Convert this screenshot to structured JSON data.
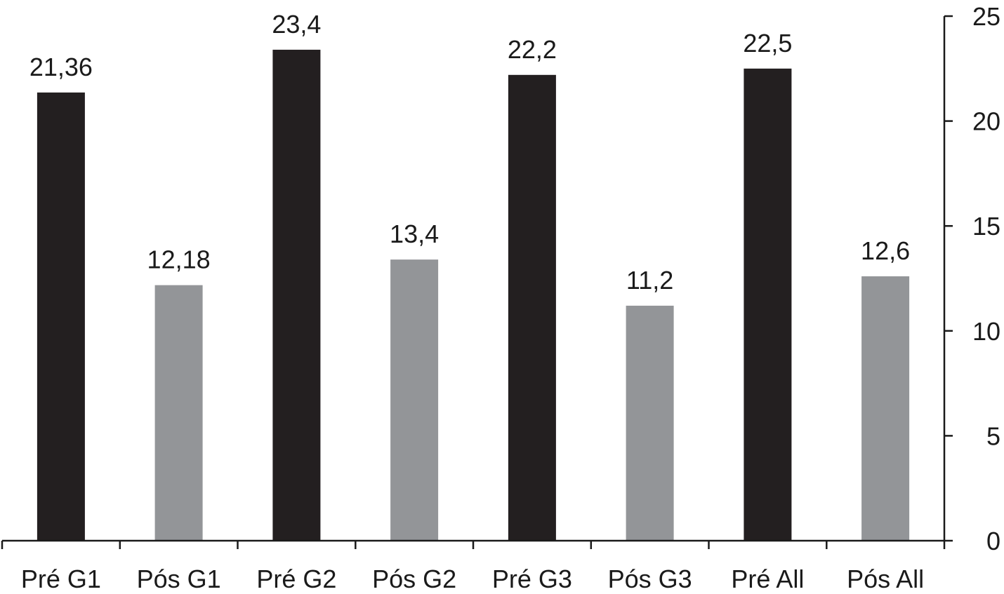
{
  "chart_data": {
    "type": "bar",
    "categories": [
      "Pré G1",
      "Pós G1",
      "Pré G2",
      "Pós G2",
      "Pré G3",
      "Pós G3",
      "Pré All",
      "Pós All"
    ],
    "values": [
      21.36,
      12.18,
      23.4,
      13.4,
      22.2,
      11.2,
      22.5,
      12.6
    ],
    "value_labels": [
      "21,36",
      "12,18",
      "23,4",
      "13,4",
      "22,2",
      "11,2",
      "22,5",
      "12,6"
    ],
    "ylim": [
      0,
      25
    ],
    "yticks": [
      0,
      5,
      10,
      15,
      20,
      25
    ],
    "y_axis_side": "right",
    "grid": false,
    "title": "",
    "xlabel": "",
    "ylabel": "",
    "colors": {
      "pre": "#231f20",
      "pos": "#939598"
    }
  }
}
